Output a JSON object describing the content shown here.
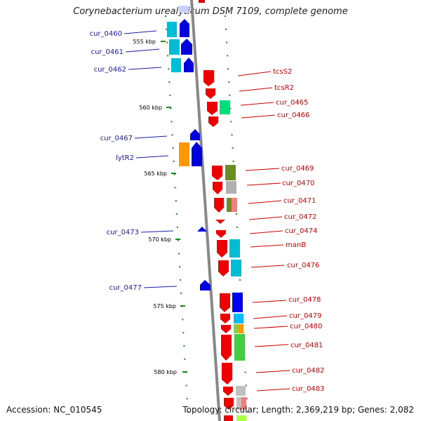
{
  "title": "Corynebacterium urealyticum DSM 7109, complete genome",
  "accession": "Accession: NC_010545",
  "footer": "Topology: circular; Length: 2,369,219 bp; Genes: 2,082",
  "colors": {
    "left_label": "#1a1aa6",
    "right_label": "#cc0000",
    "backbone": "#888888",
    "tick": "#1a8a1a"
  },
  "scale_labels": [
    "555 kbp",
    "560 kbp",
    "565 kbp",
    "570 kbp",
    "575 kbp",
    "580 kbp"
  ],
  "left_genes": [
    "cur_0460",
    "cur_0461",
    "cur_0462",
    "cur_0467",
    "lytR2",
    "cur_0473",
    "cur_0477"
  ],
  "right_genes": [
    "tcsS2",
    "tcsR2",
    "cur_0465",
    "cur_0466",
    "cur_0469",
    "cur_0470",
    "cur_0471",
    "cur_0472",
    "cur_0474",
    "manB",
    "cur_0476",
    "cur_0478",
    "cur_0479",
    "cur_0480",
    "cur_0481",
    "cur_0482",
    "cur_0483"
  ]
}
